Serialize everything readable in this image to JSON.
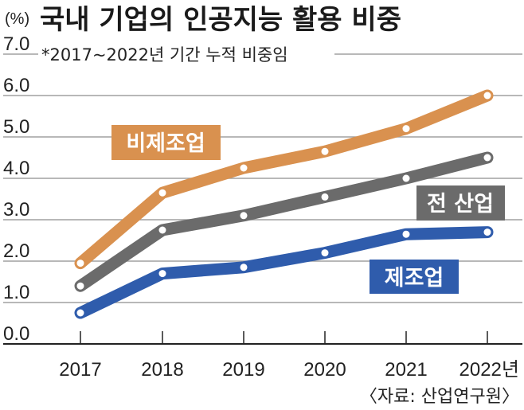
{
  "chart_data": {
    "type": "line",
    "title": "국내 기업의 인공지능 활용 비중",
    "subtitle": "*2017~2022년 기간 누적 비중임",
    "ylabel": "(%)",
    "xlabel": "",
    "source": "〈자료: 산업연구원〉",
    "ylim": [
      0,
      7
    ],
    "yticks": [
      "0.0",
      "1.0",
      "2.0",
      "3.0",
      "4.0",
      "5.0",
      "6.0",
      "7.0"
    ],
    "categories": [
      "2017",
      "2018",
      "2019",
      "2020",
      "2021",
      "2022년"
    ],
    "grid": true,
    "series": [
      {
        "name": "비제조업",
        "color": "#d9914f",
        "values": [
          1.95,
          3.65,
          4.25,
          4.65,
          5.2,
          6.0
        ]
      },
      {
        "name": "전 산업",
        "color": "#6b6b6b",
        "values": [
          1.4,
          2.75,
          3.1,
          3.55,
          4.0,
          4.5
        ]
      },
      {
        "name": "제조업",
        "color": "#2f5cac",
        "values": [
          0.75,
          1.7,
          1.85,
          2.2,
          2.65,
          2.7
        ]
      }
    ]
  }
}
